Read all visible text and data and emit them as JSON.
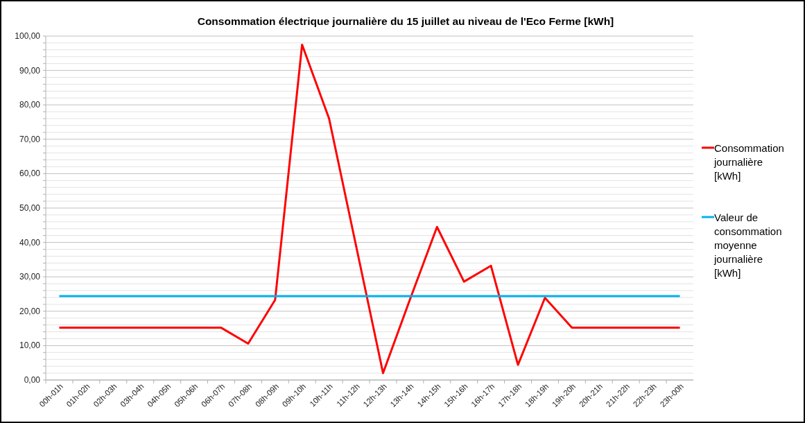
{
  "chart_data": {
    "type": "line",
    "title": "Consommation électrique journalière  du 15 juillet au niveau de l'Eco Ferme [kWh]",
    "categories": [
      "00h-01h",
      "01h-02h",
      "02h-03h",
      "03h-04h",
      "04h-05h",
      "05h-06h",
      "06h-07h",
      "07h-08h",
      "08h-09h",
      "09h-10h",
      "10h-11h",
      "11h-12h",
      "12h-13h",
      "13h-14h",
      "14h-15h",
      "15h-16h",
      "16h-17h",
      "17h-18h",
      "18h-19h",
      "19h-20h",
      "20h-21h",
      "21h-22h",
      "22h-23h",
      "23h-00h"
    ],
    "series": [
      {
        "name": "Consommation journalière [kWh]",
        "color": "#ff0000",
        "values": [
          15.2,
          15.2,
          15.2,
          15.2,
          15.2,
          15.2,
          15.2,
          10.6,
          23.3,
          97.5,
          76,
          39,
          2,
          23.5,
          44.5,
          28.6,
          33.2,
          4.4,
          23.9,
          15.2,
          15.2,
          15.2,
          15.2,
          15.2
        ]
      },
      {
        "name": "Valeur de consommation moyenne journalière [kWh]",
        "color": "#00b0f0",
        "values": [
          24.4,
          24.4,
          24.4,
          24.4,
          24.4,
          24.4,
          24.4,
          24.4,
          24.4,
          24.4,
          24.4,
          24.4,
          24.4,
          24.4,
          24.4,
          24.4,
          24.4,
          24.4,
          24.4,
          24.4,
          24.4,
          24.4,
          24.4,
          24.4
        ]
      }
    ],
    "ylim": [
      0,
      100
    ],
    "yticks": [
      {
        "value": 0,
        "label": "0,00"
      },
      {
        "value": 2,
        "label": null
      },
      {
        "value": 4,
        "label": null
      },
      {
        "value": 6,
        "label": null
      },
      {
        "value": 8,
        "label": null
      },
      {
        "value": 10,
        "label": "10,00"
      },
      {
        "value": 12,
        "label": null
      },
      {
        "value": 14,
        "label": null
      },
      {
        "value": 16,
        "label": null
      },
      {
        "value": 18,
        "label": null
      },
      {
        "value": 20,
        "label": "20,00"
      },
      {
        "value": 22,
        "label": null
      },
      {
        "value": 24,
        "label": null
      },
      {
        "value": 26,
        "label": null
      },
      {
        "value": 28,
        "label": null
      },
      {
        "value": 30,
        "label": "30,00"
      },
      {
        "value": 32,
        "label": null
      },
      {
        "value": 34,
        "label": null
      },
      {
        "value": 36,
        "label": null
      },
      {
        "value": 38,
        "label": null
      },
      {
        "value": 40,
        "label": "40,00"
      },
      {
        "value": 42,
        "label": null
      },
      {
        "value": 44,
        "label": null
      },
      {
        "value": 46,
        "label": null
      },
      {
        "value": 48,
        "label": null
      },
      {
        "value": 50,
        "label": "50,00"
      },
      {
        "value": 52,
        "label": null
      },
      {
        "value": 54,
        "label": null
      },
      {
        "value": 56,
        "label": null
      },
      {
        "value": 58,
        "label": null
      },
      {
        "value": 60,
        "label": "60,00"
      },
      {
        "value": 62,
        "label": null
      },
      {
        "value": 64,
        "label": null
      },
      {
        "value": 66,
        "label": null
      },
      {
        "value": 68,
        "label": null
      },
      {
        "value": 70,
        "label": "70,00"
      },
      {
        "value": 72,
        "label": null
      },
      {
        "value": 74,
        "label": null
      },
      {
        "value": 76,
        "label": null
      },
      {
        "value": 78,
        "label": null
      },
      {
        "value": 80,
        "label": "80,00"
      },
      {
        "value": 82,
        "label": null
      },
      {
        "value": 84,
        "label": null
      },
      {
        "value": 86,
        "label": null
      },
      {
        "value": 88,
        "label": null
      },
      {
        "value": 90,
        "label": "90,00"
      },
      {
        "value": 92,
        "label": null
      },
      {
        "value": 94,
        "label": null
      },
      {
        "value": 96,
        "label": null
      },
      {
        "value": 98,
        "label": null
      },
      {
        "value": 100,
        "label": "100,00"
      }
    ],
    "grid": "y",
    "legend": "right",
    "marker": "none",
    "line_style": "solid"
  }
}
